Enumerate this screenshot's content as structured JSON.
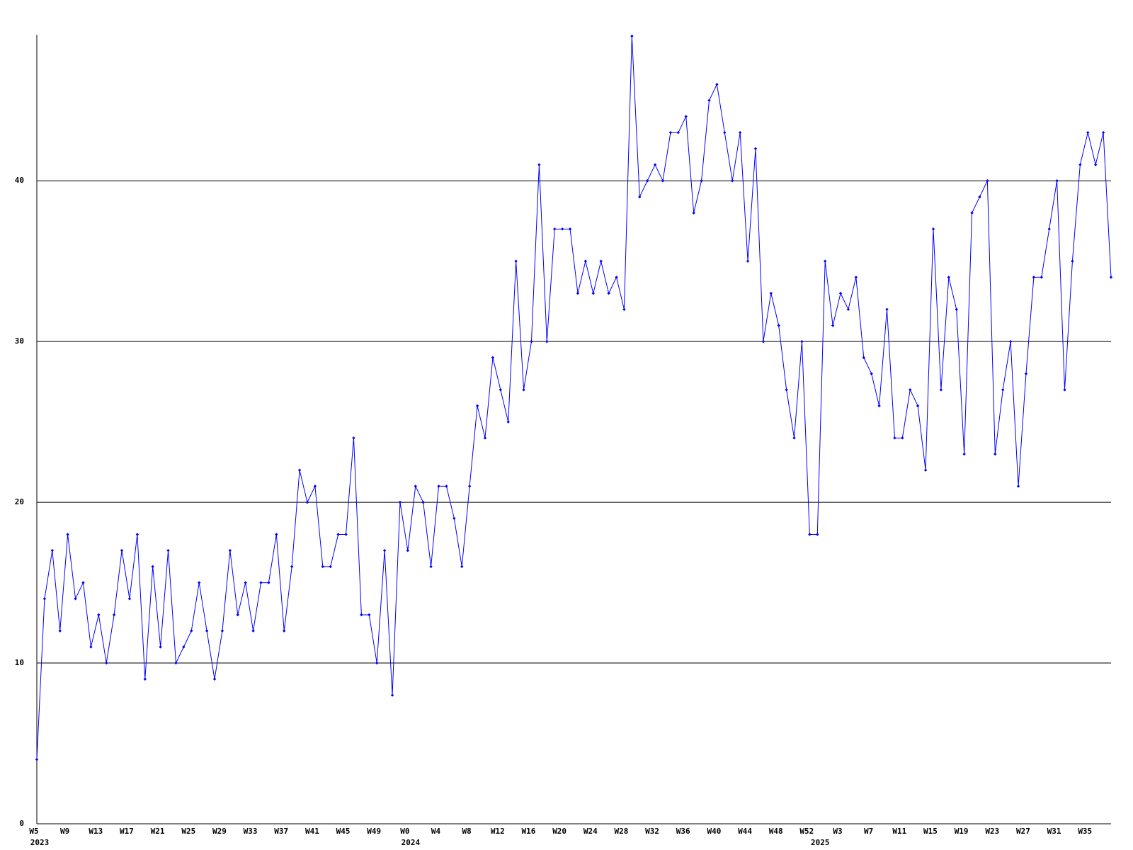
{
  "chart_data": {
    "type": "line",
    "color": "#0000ff",
    "grid": true,
    "ylim": [
      0,
      49
    ],
    "yticks": [
      0,
      10,
      20,
      30,
      40
    ],
    "categories": [
      "W5",
      null,
      null,
      null,
      "W9",
      null,
      null,
      null,
      "W13",
      null,
      null,
      null,
      "W17",
      null,
      null,
      null,
      "W21",
      null,
      null,
      null,
      "W25",
      null,
      null,
      null,
      "W29",
      null,
      null,
      null,
      "W33",
      null,
      null,
      null,
      "W37",
      null,
      null,
      null,
      "W41",
      null,
      null,
      null,
      "W45",
      null,
      null,
      null,
      "W49",
      null,
      null,
      null,
      "W0",
      null,
      null,
      null,
      "W4",
      null,
      null,
      null,
      "W8",
      null,
      null,
      null,
      "W12",
      null,
      null,
      null,
      "W16",
      null,
      null,
      null,
      "W20",
      null,
      null,
      null,
      "W24",
      null,
      null,
      null,
      "W28",
      null,
      null,
      null,
      "W32",
      null,
      null,
      null,
      "W36",
      null,
      null,
      null,
      "W40",
      null,
      null,
      null,
      "W44",
      null,
      null,
      null,
      "W48",
      null,
      null,
      null,
      "W52",
      null,
      null,
      null,
      "W3",
      null,
      null,
      null,
      "W7",
      null,
      null,
      null,
      "W11",
      null,
      null,
      null,
      "W15",
      null,
      null,
      null,
      "W19",
      null,
      null,
      null,
      "W23",
      null,
      null,
      null,
      "W27",
      null,
      null,
      null,
      "W31",
      null,
      null,
      null,
      "W35",
      null,
      null,
      null
    ],
    "category_years": [
      "2023",
      null,
      null,
      null,
      null,
      null,
      null,
      null,
      null,
      null,
      null,
      null,
      null,
      null,
      null,
      null,
      null,
      null,
      null,
      null,
      null,
      null,
      null,
      null,
      null,
      null,
      null,
      null,
      null,
      null,
      null,
      null,
      null,
      null,
      null,
      null,
      null,
      null,
      null,
      null,
      null,
      null,
      null,
      null,
      null,
      null,
      null,
      null,
      "2024",
      null,
      null,
      null,
      null,
      null,
      null,
      null,
      null,
      null,
      null,
      null,
      null,
      null,
      null,
      null,
      null,
      null,
      null,
      null,
      null,
      null,
      null,
      null,
      null,
      null,
      null,
      null,
      null,
      null,
      null,
      null,
      null,
      null,
      null,
      null,
      null,
      null,
      null,
      null,
      null,
      null,
      null,
      null,
      null,
      null,
      null,
      null,
      null,
      null,
      null,
      null,
      null,
      "2025",
      null,
      null,
      null,
      null,
      null,
      null,
      null,
      null,
      null,
      null,
      null,
      null,
      null,
      null,
      null,
      null,
      null,
      null,
      null,
      null,
      null,
      null,
      null,
      null,
      null,
      null,
      null,
      null,
      null,
      null,
      null,
      null,
      null,
      null,
      null,
      null,
      null,
      null
    ],
    "values": [
      4,
      14,
      17,
      12,
      18,
      14,
      15,
      11,
      13,
      10,
      13,
      17,
      14,
      18,
      9,
      16,
      11,
      17,
      10,
      11,
      12,
      15,
      12,
      9,
      12,
      17,
      13,
      15,
      12,
      15,
      15,
      18,
      12,
      16,
      22,
      20,
      21,
      16,
      16,
      18,
      18,
      24,
      13,
      13,
      10,
      17,
      8,
      20,
      17,
      21,
      20,
      16,
      21,
      21,
      19,
      16,
      21,
      26,
      24,
      29,
      27,
      25,
      35,
      27,
      30,
      41,
      30,
      37,
      37,
      37,
      33,
      35,
      33,
      35,
      33,
      34,
      32,
      49,
      39,
      40,
      41,
      40,
      43,
      43,
      44,
      38,
      40,
      45,
      46,
      43,
      40,
      43,
      35,
      42,
      30,
      33,
      31,
      27,
      24,
      30,
      18,
      18,
      35,
      31,
      33,
      32,
      34,
      29,
      28,
      26,
      32,
      24,
      24,
      27,
      26,
      22,
      37,
      27,
      34,
      32,
      23,
      38,
      39,
      40,
      23,
      27,
      30,
      21,
      28,
      34,
      34,
      37,
      40,
      27,
      35,
      41,
      43,
      41,
      43,
      34
    ]
  }
}
